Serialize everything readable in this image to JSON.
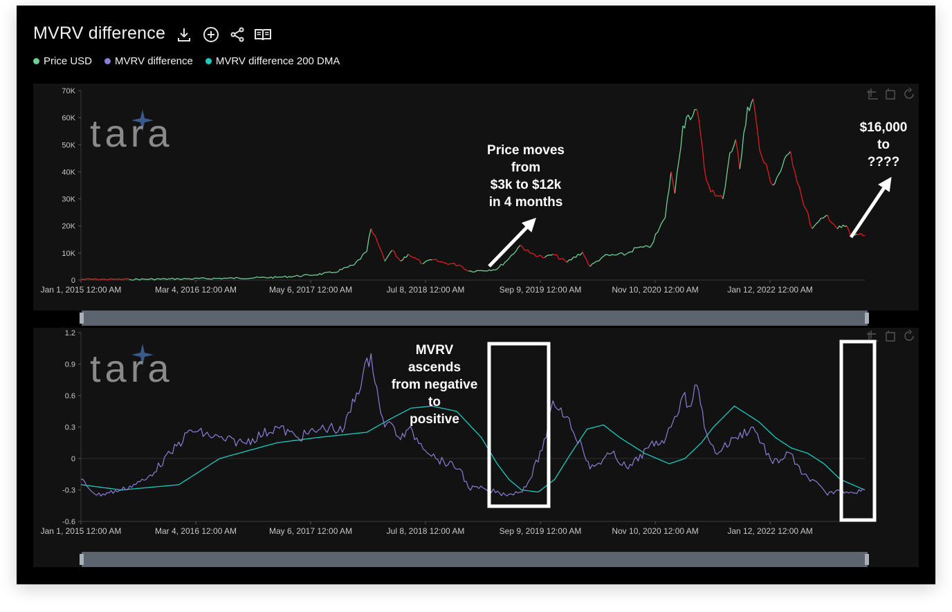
{
  "header": {
    "title": "MVRV difference",
    "icons": [
      "download-icon",
      "add-circle-icon",
      "share-icon",
      "book-icon"
    ]
  },
  "legend": [
    {
      "label": "Price USD",
      "color": "#6fcf97"
    },
    {
      "label": "MVRV difference",
      "color": "#8a7fd6"
    },
    {
      "label": "MVRV difference 200 DMA",
      "color": "#1ccbc0"
    }
  ],
  "watermark": "tara",
  "colors": {
    "price_up": "#6fcf97",
    "price_down": "#e01e1e",
    "mvrv": "#8a7fd6",
    "dma": "#1ccbc0",
    "plot_bg": "#121212",
    "axis_text": "#c8c8c8"
  },
  "chart_data": [
    {
      "type": "line",
      "series": [
        {
          "name": "Price USD",
          "x": [
            "2015-01-01",
            "2015-07-01",
            "2016-01-01",
            "2016-07-01",
            "2017-01-01",
            "2017-05-01",
            "2017-08-01",
            "2017-10-15",
            "2017-12-01",
            "2017-12-17",
            "2018-01-10",
            "2018-02-06",
            "2018-03-05",
            "2018-04-06",
            "2018-05-05",
            "2018-06-29",
            "2018-08-01",
            "2018-09-15",
            "2018-11-14",
            "2018-12-15",
            "2019-02-01",
            "2019-04-01",
            "2019-05-15",
            "2019-06-26",
            "2019-08-01",
            "2019-09-25",
            "2019-10-26",
            "2019-12-17",
            "2020-02-13",
            "2020-03-12",
            "2020-05-01",
            "2020-07-25",
            "2020-09-01",
            "2020-10-21",
            "2020-11-25",
            "2020-12-17",
            "2021-01-08",
            "2021-01-22",
            "2021-02-21",
            "2021-03-13",
            "2021-04-14",
            "2021-05-19",
            "2021-06-22",
            "2021-07-20",
            "2021-08-15",
            "2021-09-06",
            "2021-09-21",
            "2021-10-20",
            "2021-11-10",
            "2021-12-04",
            "2022-01-22",
            "2022-03-29",
            "2022-05-09",
            "2022-06-18",
            "2022-08-14",
            "2022-09-20",
            "2022-10-25",
            "2022-11-09",
            "2022-12-01",
            "2022-12-31"
          ],
          "values": [
            300,
            250,
            430,
            650,
            1000,
            1800,
            2800,
            5600,
            10500,
            19000,
            14000,
            7000,
            11000,
            7000,
            9600,
            6000,
            7500,
            6400,
            5500,
            3300,
            3500,
            4100,
            8000,
            12900,
            10000,
            8300,
            9500,
            6600,
            10300,
            5000,
            8800,
            9600,
            11900,
            12000,
            19000,
            23000,
            40000,
            32000,
            57000,
            61000,
            63000,
            37000,
            31000,
            30000,
            47000,
            52000,
            41000,
            64000,
            67000,
            48000,
            35000,
            47500,
            31000,
            19000,
            24000,
            18900,
            20000,
            16000,
            17000,
            16500
          ]
        },
        {
          "name": "MVRV difference",
          "x": [
            "2015-01-01",
            "2015-03-01",
            "2015-06-01",
            "2015-09-01",
            "2015-12-01",
            "2016-02-15",
            "2016-06-15",
            "2016-09-01",
            "2017-01-01",
            "2017-03-20",
            "2017-06-11",
            "2017-07-15",
            "2017-09-01",
            "2017-12-17",
            "2018-01-15",
            "2018-02-06",
            "2018-03-05",
            "2018-04-06",
            "2018-05-05",
            "2018-08-15",
            "2018-11-14",
            "2018-12-15",
            "2019-02-15",
            "2019-04-10",
            "2019-05-15",
            "2019-06-26",
            "2019-08-01",
            "2019-10-01",
            "2019-10-26",
            "2019-12-17",
            "2020-02-13",
            "2020-03-12",
            "2020-06-01",
            "2020-08-01",
            "2020-10-15",
            "2020-12-20",
            "2021-01-08",
            "2021-01-22",
            "2021-02-21",
            "2021-03-15",
            "2021-04-14",
            "2021-05-19",
            "2021-06-22",
            "2021-07-20",
            "2021-09-06",
            "2021-11-10",
            "2022-01-22",
            "2022-03-29",
            "2022-05-09",
            "2022-06-18",
            "2022-08-14",
            "2022-09-20",
            "2022-11-09",
            "2022-12-31"
          ],
          "values": [
            -0.2,
            -0.35,
            -0.3,
            -0.2,
            0.05,
            0.27,
            0.18,
            0.15,
            0.3,
            0.2,
            0.28,
            0.3,
            0.25,
            1.0,
            0.55,
            0.3,
            0.33,
            0.18,
            0.28,
            0.0,
            -0.1,
            -0.28,
            -0.29,
            -0.33,
            -0.34,
            -0.32,
            -0.2,
            0.2,
            0.55,
            0.4,
            0.1,
            -0.1,
            0.05,
            -0.1,
            0.1,
            0.2,
            0.3,
            0.4,
            0.6,
            0.5,
            0.7,
            0.25,
            0.05,
            0.1,
            0.2,
            0.3,
            -0.05,
            0.05,
            -0.15,
            -0.2,
            -0.35,
            -0.3,
            -0.32,
            -0.3
          ]
        },
        {
          "name": "MVRV difference 200 DMA",
          "x": [
            "2015-01-01",
            "2015-06-01",
            "2016-01-01",
            "2016-06-01",
            "2017-01-01",
            "2017-06-01",
            "2017-12-01",
            "2018-03-01",
            "2018-05-15",
            "2018-08-01",
            "2018-11-01",
            "2019-02-01",
            "2019-04-01",
            "2019-05-15",
            "2019-07-01",
            "2019-09-01",
            "2019-11-01",
            "2020-01-01",
            "2020-03-01",
            "2020-05-01",
            "2020-07-01",
            "2020-10-01",
            "2021-01-01",
            "2021-03-01",
            "2021-05-01",
            "2021-06-15",
            "2021-09-01",
            "2021-12-01",
            "2022-02-01",
            "2022-04-01",
            "2022-06-01",
            "2022-08-01",
            "2022-10-01",
            "2022-12-31"
          ],
          "values": [
            -0.25,
            -0.3,
            -0.25,
            0.0,
            0.15,
            0.2,
            0.25,
            0.38,
            0.48,
            0.5,
            0.45,
            0.2,
            -0.05,
            -0.2,
            -0.3,
            -0.32,
            -0.2,
            0.05,
            0.28,
            0.32,
            0.2,
            0.05,
            -0.05,
            0.0,
            0.15,
            0.3,
            0.5,
            0.35,
            0.2,
            0.1,
            0.05,
            -0.05,
            -0.2,
            -0.3
          ]
        }
      ],
      "x_ticks": [
        "Jan 1, 2015 12:00 AM",
        "Mar 4, 2016 12:00 AM",
        "May 6, 2017 12:00 AM",
        "Jul 8, 2018 12:00 AM",
        "Sep 9, 2019 12:00 AM",
        "Nov 10, 2020 12:00 AM",
        "Jan 12, 2022 12:00 AM"
      ],
      "x_tick_dates": [
        "2015-01-01",
        "2016-03-04",
        "2017-05-06",
        "2018-07-08",
        "2019-09-09",
        "2020-11-10",
        "2022-01-12"
      ],
      "xlim": [
        "2015-01-01",
        "2022-12-31"
      ],
      "price_ticks": [
        "0",
        "10K",
        "20K",
        "30K",
        "40K",
        "50K",
        "60K",
        "70K"
      ],
      "price_tick_values": [
        0,
        10000,
        20000,
        30000,
        40000,
        50000,
        60000,
        70000
      ],
      "price_ylim": [
        0,
        70000
      ],
      "mvrv_ticks": [
        "-0.6",
        "-0.3",
        "0",
        "0.3",
        "0.6",
        "0.9",
        "1.2"
      ],
      "mvrv_tick_values": [
        -0.6,
        -0.3,
        0,
        0.3,
        0.6,
        0.9,
        1.2
      ],
      "mvrv_ylim": [
        -0.6,
        1.2
      ]
    }
  ],
  "annotations": {
    "price_move": [
      "Price moves",
      "from",
      "$3k to $12k",
      "in 4 months"
    ],
    "price_target": [
      "$16,000",
      "to",
      "????"
    ],
    "mvrv_note": [
      "MVRV",
      "ascends",
      "from negative",
      "to",
      "positive"
    ]
  }
}
